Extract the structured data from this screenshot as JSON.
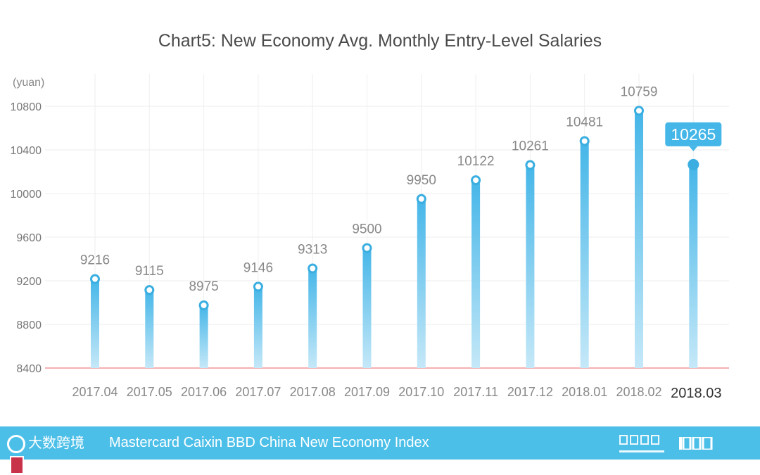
{
  "chart_data": {
    "type": "bar",
    "title": "Chart5:  New Economy Avg. Monthly Entry-Level Salaries",
    "ylabel": "(yuan)",
    "xlabel": "",
    "ylim": [
      8400,
      10800
    ],
    "yticks": [
      8400,
      8800,
      9200,
      9600,
      10000,
      10400,
      10800
    ],
    "categories": [
      "2017.04",
      "2017.05",
      "2017.06",
      "2017.07",
      "2017.08",
      "2017.09",
      "2017.10",
      "2017.11",
      "2017.12",
      "2018.01",
      "2018.02",
      "2018.03"
    ],
    "values": [
      9216,
      9115,
      8975,
      9146,
      9313,
      9500,
      9950,
      10122,
      10261,
      10481,
      10759,
      10265
    ],
    "highlighted": "2018.03",
    "grid": true,
    "colors": {
      "bar_top": "#45b6e8",
      "bar_bottom": "#c5e8f8",
      "baseline": "#f08080",
      "grid": "#eeeeee",
      "callout": "#45b6e8"
    }
  },
  "footer": {
    "text": "Mastercard Caixin BBD China New Economy Index",
    "logo_left_text": "大数跨境",
    "background": "#4cbfe8"
  }
}
